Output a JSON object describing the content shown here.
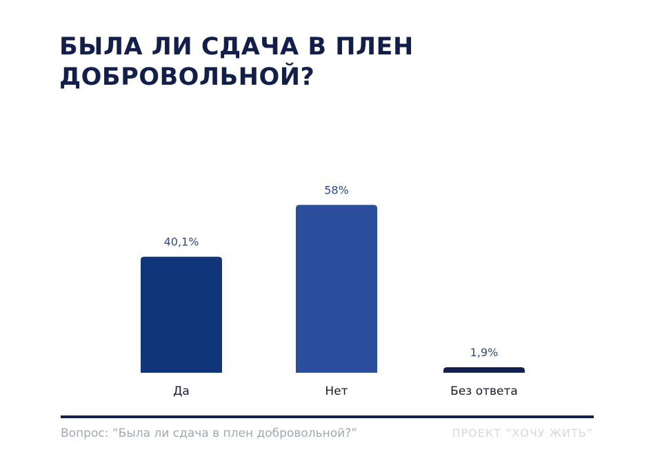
{
  "title_lines": [
    "БЫЛА ЛИ СДАЧА В ПЛЕН",
    "ДОБРОВОЛЬНОЙ?"
  ],
  "chart_data": {
    "type": "bar",
    "title": "БЫЛА ЛИ СДАЧА В ПЛЕН ДОБРОВОЛЬНОЙ?",
    "categories": [
      "Да",
      "Нет",
      "Без ответа"
    ],
    "values": [
      40.1,
      58,
      1.9
    ],
    "value_labels": [
      "40,1%",
      "58%",
      "1,9%"
    ],
    "colors": [
      "#11357a",
      "#2a4e9c",
      "#14204f"
    ],
    "label_color": "#2c4a87",
    "xlabel": "",
    "ylabel": "",
    "ylim": [
      0,
      100
    ],
    "grid": false,
    "legend": "none"
  },
  "footer": {
    "question": "Вопрос: “Была ли сдача в плен добровольной?”",
    "project": "ПРОЕКТ “ХОЧУ ЖИТЬ”"
  }
}
